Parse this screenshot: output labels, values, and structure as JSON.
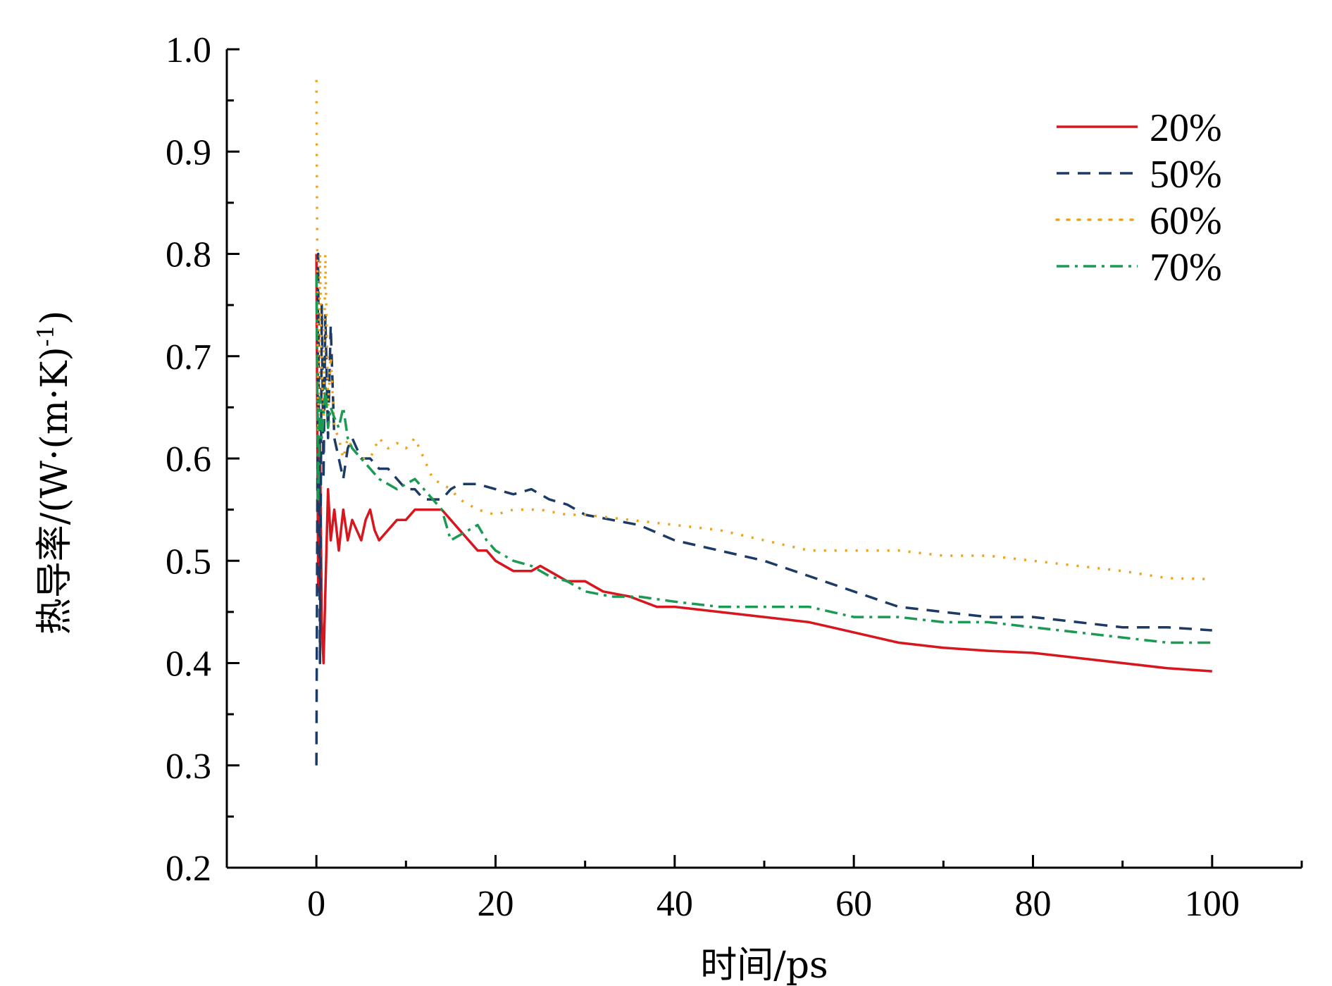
{
  "chart_data": {
    "type": "line",
    "title": "",
    "xlabel": "时间/ps",
    "ylabel": "热导率/(W·(m·K)",
    "ylabel_superscript": "-1",
    "ylabel_close": ")",
    "xlim": [
      -10,
      110
    ],
    "ylim": [
      0.2,
      1.0
    ],
    "xticks": [
      0,
      20,
      40,
      60,
      80,
      100
    ],
    "xtick_labels": [
      "0",
      "20",
      "40",
      "60",
      "80",
      "100"
    ],
    "yticks": [
      0.2,
      0.3,
      0.4,
      0.5,
      0.6,
      0.7,
      0.8,
      0.9,
      1.0
    ],
    "ytick_labels": [
      "0.2",
      "0.3",
      "0.4",
      "0.5",
      "0.6",
      "0.7",
      "0.8",
      "0.9",
      "1.0"
    ],
    "grid": false,
    "legend_position": "top-right",
    "series": [
      {
        "name": "20%",
        "color": "#d7161e",
        "dash": "solid",
        "x": [
          0,
          0.2,
          0.4,
          0.6,
          0.8,
          1.0,
          1.3,
          1.6,
          2.0,
          2.5,
          3.0,
          3.5,
          4.0,
          4.5,
          5.0,
          5.5,
          6.0,
          6.5,
          7.0,
          8.0,
          9.0,
          10.0,
          11.0,
          12.0,
          13.0,
          14.0,
          15.0,
          16.0,
          17.0,
          18.0,
          19.0,
          20.0,
          22.0,
          24.0,
          25.0,
          26.0,
          28.0,
          30.0,
          32.0,
          35.0,
          38.0,
          40.0,
          45.0,
          50.0,
          55.0,
          60.0,
          65.0,
          70.0,
          75.0,
          80.0,
          85.0,
          90.0,
          95.0,
          100.0
        ],
        "y": [
          0.8,
          0.47,
          0.62,
          0.44,
          0.4,
          0.47,
          0.57,
          0.52,
          0.55,
          0.51,
          0.55,
          0.52,
          0.54,
          0.53,
          0.52,
          0.54,
          0.55,
          0.53,
          0.52,
          0.53,
          0.54,
          0.54,
          0.55,
          0.55,
          0.55,
          0.55,
          0.54,
          0.53,
          0.52,
          0.51,
          0.51,
          0.5,
          0.49,
          0.49,
          0.495,
          0.49,
          0.48,
          0.48,
          0.47,
          0.465,
          0.455,
          0.455,
          0.45,
          0.445,
          0.44,
          0.43,
          0.42,
          0.415,
          0.412,
          0.41,
          0.405,
          0.4,
          0.395,
          0.392
        ]
      },
      {
        "name": "50%",
        "color": "#1c3a66",
        "dash": "dashed",
        "x": [
          0,
          0.2,
          0.4,
          0.6,
          0.8,
          1.0,
          1.3,
          1.6,
          2.0,
          2.5,
          3.0,
          3.5,
          4.0,
          5.0,
          6.0,
          7.0,
          8.0,
          9.0,
          10.0,
          11.0,
          12.0,
          13.0,
          14.0,
          15.0,
          16.0,
          18.0,
          20.0,
          22.0,
          24.0,
          26.0,
          28.0,
          30.0,
          33.0,
          36.0,
          40.0,
          45.0,
          50.0,
          55.0,
          60.0,
          65.0,
          70.0,
          75.0,
          80.0,
          85.0,
          90.0,
          95.0,
          100.0
        ],
        "y": [
          0.3,
          0.8,
          0.4,
          0.75,
          0.58,
          0.74,
          0.62,
          0.73,
          0.62,
          0.6,
          0.58,
          0.61,
          0.62,
          0.6,
          0.6,
          0.59,
          0.59,
          0.58,
          0.57,
          0.57,
          0.56,
          0.56,
          0.56,
          0.57,
          0.575,
          0.575,
          0.57,
          0.565,
          0.57,
          0.56,
          0.555,
          0.545,
          0.54,
          0.535,
          0.52,
          0.51,
          0.5,
          0.485,
          0.47,
          0.455,
          0.45,
          0.445,
          0.445,
          0.44,
          0.435,
          0.435,
          0.432
        ]
      },
      {
        "name": "60%",
        "color": "#eea21b",
        "dash": "dotted",
        "x": [
          0,
          0.2,
          0.4,
          0.6,
          0.8,
          1.0,
          1.3,
          1.6,
          2.0,
          2.5,
          3.0,
          3.5,
          4.0,
          5.0,
          6.0,
          7.0,
          8.0,
          9.0,
          10.0,
          11.0,
          12.0,
          13.0,
          14.0,
          15.0,
          16.0,
          18.0,
          20.0,
          22.0,
          25.0,
          28.0,
          30.0,
          35.0,
          40.0,
          45.0,
          50.0,
          55.0,
          60.0,
          65.0,
          70.0,
          75.0,
          80.0,
          85.0,
          90.0,
          95.0,
          100.0
        ],
        "y": [
          0.97,
          0.62,
          0.8,
          0.68,
          0.64,
          0.8,
          0.65,
          0.7,
          0.63,
          0.62,
          0.6,
          0.62,
          0.61,
          0.6,
          0.6,
          0.62,
          0.61,
          0.615,
          0.61,
          0.62,
          0.6,
          0.58,
          0.575,
          0.57,
          0.56,
          0.55,
          0.545,
          0.55,
          0.55,
          0.545,
          0.545,
          0.54,
          0.535,
          0.53,
          0.52,
          0.51,
          0.51,
          0.51,
          0.505,
          0.505,
          0.5,
          0.495,
          0.49,
          0.483,
          0.482
        ]
      },
      {
        "name": "70%",
        "color": "#1a9a52",
        "dash": "dashdot",
        "x": [
          0,
          0.2,
          0.4,
          0.6,
          0.8,
          1.0,
          1.3,
          1.6,
          2.0,
          2.5,
          3.0,
          3.5,
          4.0,
          5.0,
          6.0,
          7.0,
          8.0,
          9.0,
          10.0,
          11.0,
          12.0,
          13.0,
          14.0,
          15.0,
          16.0,
          17.0,
          18.0,
          19.0,
          20.0,
          22.0,
          24.0,
          26.0,
          28.0,
          30.0,
          33.0,
          36.0,
          40.0,
          45.0,
          50.0,
          55.0,
          60.0,
          65.0,
          70.0,
          75.0,
          80.0,
          85.0,
          90.0,
          95.0,
          100.0
        ],
        "y": [
          0.78,
          0.56,
          0.66,
          0.62,
          0.64,
          0.67,
          0.63,
          0.65,
          0.64,
          0.63,
          0.65,
          0.62,
          0.61,
          0.6,
          0.59,
          0.58,
          0.575,
          0.57,
          0.575,
          0.58,
          0.57,
          0.56,
          0.55,
          0.52,
          0.525,
          0.53,
          0.535,
          0.52,
          0.51,
          0.5,
          0.495,
          0.485,
          0.48,
          0.47,
          0.465,
          0.465,
          0.46,
          0.455,
          0.455,
          0.455,
          0.445,
          0.445,
          0.44,
          0.44,
          0.435,
          0.43,
          0.425,
          0.42,
          0.42
        ]
      }
    ]
  }
}
